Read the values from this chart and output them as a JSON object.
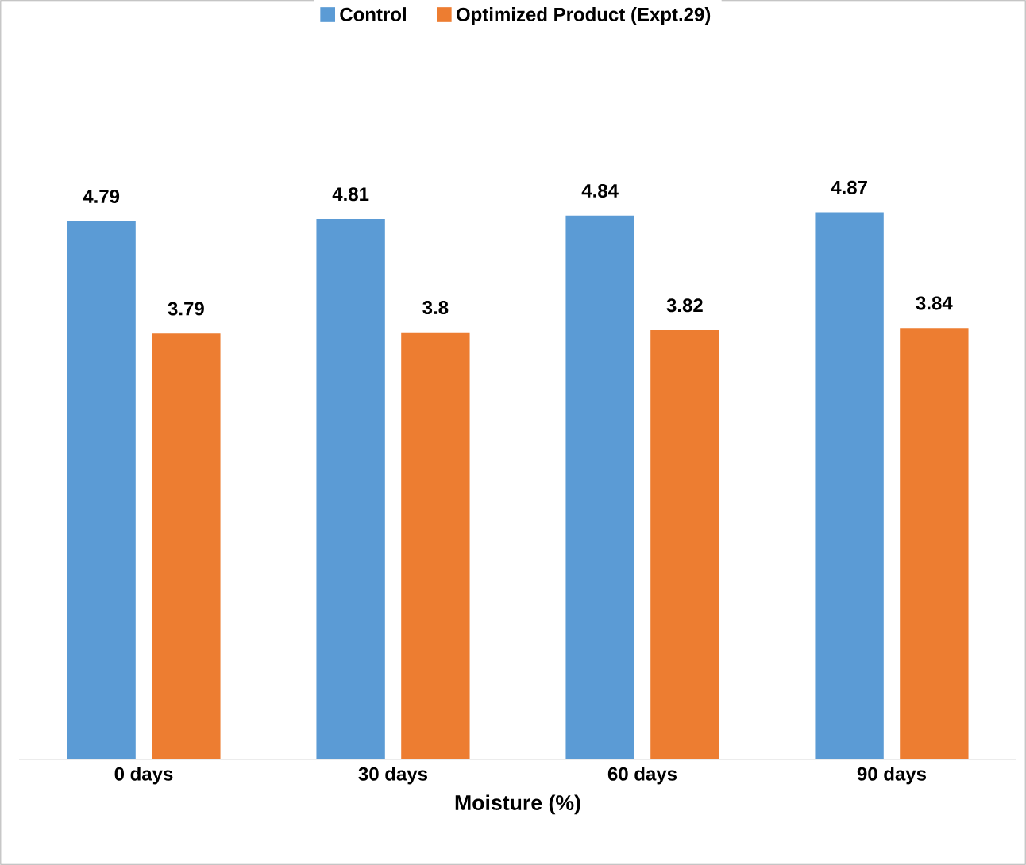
{
  "chart_data": {
    "type": "bar",
    "xlabel": "Moisture (%)",
    "categories": [
      "0 days",
      "30 days",
      "60 days",
      "90 days"
    ],
    "series": [
      {
        "name": "Control",
        "color": "#5b9bd5",
        "values": [
          4.79,
          4.81,
          4.84,
          4.87
        ]
      },
      {
        "name": "Optimized Product (Expt.29)",
        "color": "#ed7d31",
        "values": [
          3.79,
          3.8,
          3.82,
          3.84
        ]
      }
    ],
    "data_labels": true,
    "legend": "top",
    "grid": false
  }
}
